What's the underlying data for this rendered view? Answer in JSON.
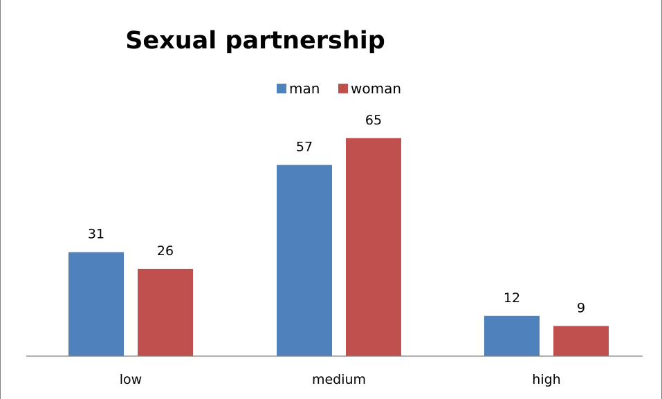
{
  "chart_data": {
    "type": "bar",
    "title": "Sexual partnership",
    "categories": [
      "low",
      "medium",
      "high"
    ],
    "series": [
      {
        "name": "man",
        "color": "#4f81bd",
        "values": [
          31,
          57,
          12
        ]
      },
      {
        "name": "woman",
        "color": "#c0504d",
        "values": [
          26,
          65,
          9
        ]
      }
    ],
    "ylim": [
      0,
      70
    ],
    "legend_position": "top-center",
    "grid": false,
    "data_labels": true
  }
}
